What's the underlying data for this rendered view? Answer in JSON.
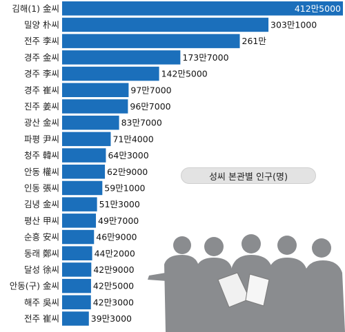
{
  "chart_data": {
    "type": "bar",
    "orientation": "horizontal",
    "title": "성씨 본관별 인구(명)",
    "categories": [
      "김해(1) 金씨",
      "밀양 朴씨",
      "전주 李씨",
      "경주 金씨",
      "경주 李씨",
      "경주 崔씨",
      "진주 姜씨",
      "광산 金씨",
      "파평 尹씨",
      "청주 韓씨",
      "안동 權씨",
      "인동 張씨",
      "김녕 金씨",
      "평산 甲씨",
      "순흥 安씨",
      "동래 鄭씨",
      "달성 徐씨",
      "안동(구) 金씨",
      "해주 吳씨",
      "전주 崔씨"
    ],
    "values": [
      4125000,
      3031000,
      2610000,
      1737000,
      1425000,
      977000,
      967000,
      837000,
      714000,
      643000,
      629000,
      591000,
      513000,
      497000,
      469000,
      442000,
      429000,
      425000,
      423000,
      393000
    ],
    "value_labels": [
      "412만5000",
      "303만1000",
      "261만",
      "173만7000",
      "142만5000",
      "97만7000",
      "96만7000",
      "83만7000",
      "71만4000",
      "64만3000",
      "62만9000",
      "59만1000",
      "51만3000",
      "49만7000",
      "46만9000",
      "44만2000",
      "42만9000",
      "42만5000",
      "42만3000",
      "39만3000"
    ],
    "bar_color": "#1b6fbb",
    "grid": false,
    "legend": "none"
  }
}
